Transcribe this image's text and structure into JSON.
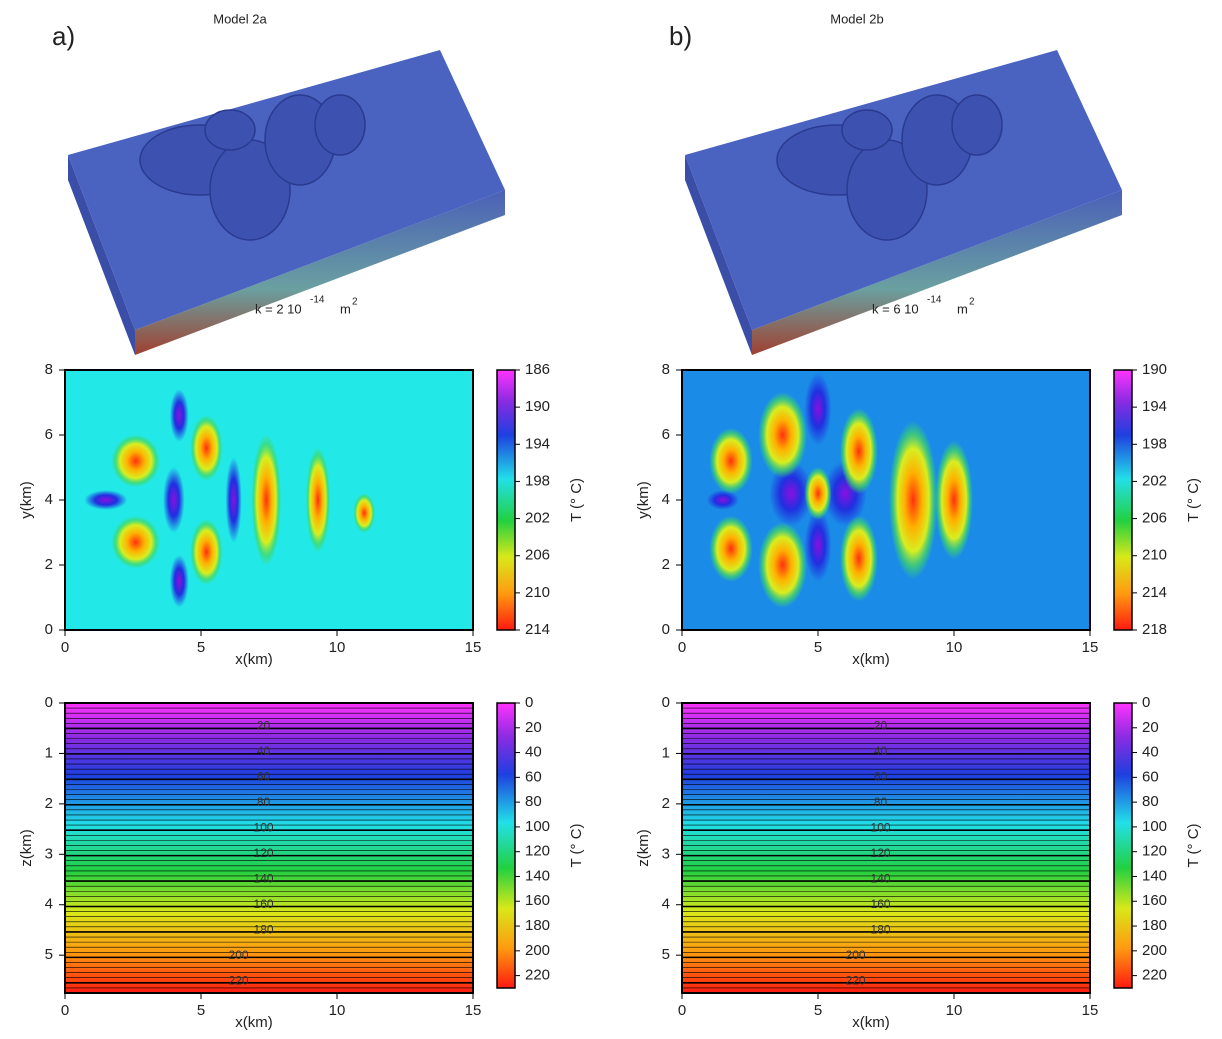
{
  "panels": [
    {
      "label": "a)",
      "title": "Model 2a",
      "k_text": "k = 2 10",
      "k_exp": "-14",
      "unit": "m",
      "unit_exp": "2",
      "map": {
        "xlim": [
          0,
          15
        ],
        "ylim": [
          0,
          8
        ],
        "xticks": [
          0,
          5,
          10,
          15
        ],
        "yticks": [
          0,
          2,
          4,
          6,
          8
        ],
        "xlabel": "x(km)",
        "ylabel": "y(km)",
        "clim": [
          186,
          214
        ],
        "cticks": [
          186,
          190,
          194,
          198,
          202,
          206,
          210,
          214
        ],
        "clabel": "T (° C)"
      },
      "section": {
        "xlim": [
          0,
          15
        ],
        "ylim": [
          0,
          5.75
        ],
        "xticks": [
          0,
          5,
          10,
          15
        ],
        "yticks": [
          0,
          1,
          2,
          3,
          4,
          5
        ],
        "xlabel": "x(km)",
        "ylabel": "z(km)",
        "clim": [
          0,
          230
        ],
        "cticks": [
          0,
          20,
          40,
          60,
          80,
          100,
          120,
          140,
          160,
          180,
          200,
          220
        ],
        "clabel": "T (° C)",
        "contour_labels": [
          20,
          40,
          60,
          80,
          100,
          120,
          140,
          160,
          180,
          200,
          220
        ]
      }
    },
    {
      "label": "b)",
      "title": "Model 2b",
      "k_text": "k = 6 10",
      "k_exp": "-14",
      "unit": "m",
      "unit_exp": "2",
      "map": {
        "xlim": [
          0,
          15
        ],
        "ylim": [
          0,
          8
        ],
        "xticks": [
          0,
          5,
          10,
          15
        ],
        "yticks": [
          0,
          2,
          4,
          6,
          8
        ],
        "xlabel": "x(km)",
        "ylabel": "y(km)",
        "clim": [
          190,
          218
        ],
        "cticks": [
          190,
          194,
          198,
          202,
          206,
          210,
          214,
          218
        ],
        "clabel": "T (° C)"
      },
      "section": {
        "xlim": [
          0,
          15
        ],
        "ylim": [
          0,
          5.75
        ],
        "xticks": [
          0,
          5,
          10,
          15
        ],
        "yticks": [
          0,
          1,
          2,
          3,
          4,
          5
        ],
        "xlabel": "x(km)",
        "ylabel": "z(km)",
        "clim": [
          0,
          230
        ],
        "cticks": [
          0,
          20,
          40,
          60,
          80,
          100,
          120,
          140,
          160,
          180,
          200,
          220
        ],
        "clabel": "T (° C)",
        "contour_labels": [
          20,
          40,
          60,
          80,
          100,
          120,
          140,
          160,
          180,
          200,
          220
        ]
      }
    }
  ]
}
